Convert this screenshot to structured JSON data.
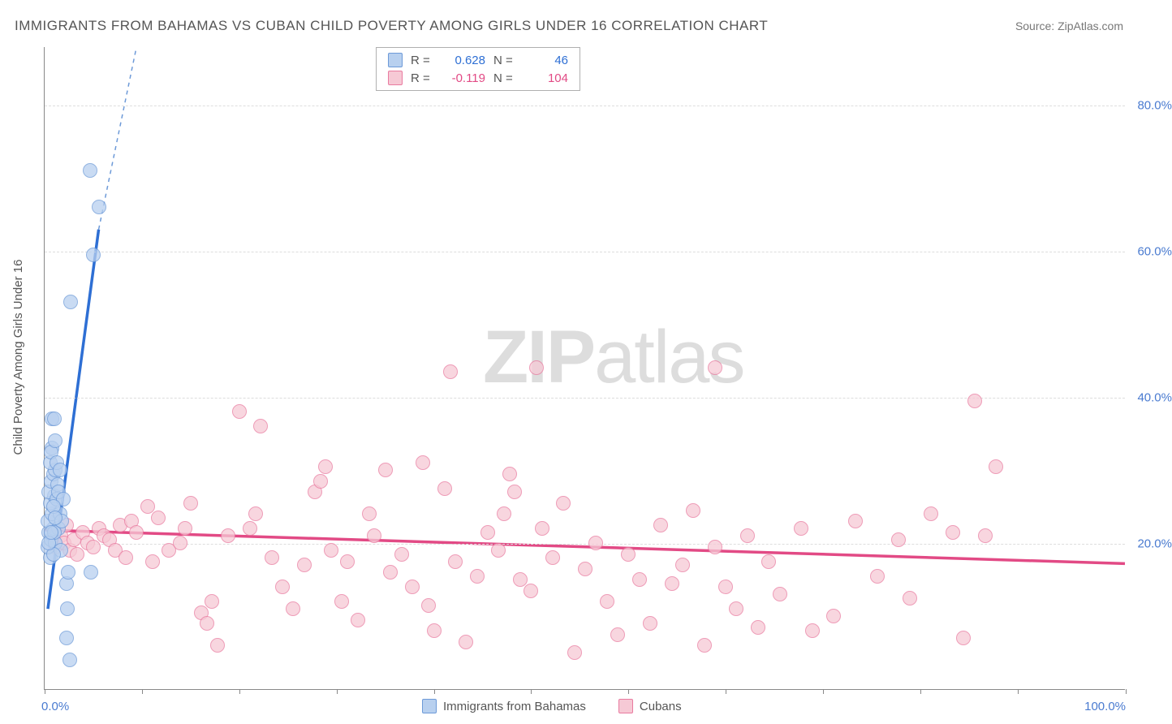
{
  "title": "IMMIGRANTS FROM BAHAMAS VS CUBAN CHILD POVERTY AMONG GIRLS UNDER 16 CORRELATION CHART",
  "source": "Source: ZipAtlas.com",
  "watermark_a": "ZIP",
  "watermark_b": "atlas",
  "y_axis_label": "Child Poverty Among Girls Under 16",
  "chart": {
    "type": "scatter",
    "xlim": [
      0,
      100
    ],
    "ylim": [
      0,
      88
    ],
    "x_tick_positions": [
      0,
      9,
      18,
      27,
      36,
      45,
      54,
      63,
      72,
      81,
      90,
      100
    ],
    "x_tick_labels": {
      "0": "0.0%",
      "100": "100.0%"
    },
    "y_ticks": [
      20,
      40,
      60,
      80
    ],
    "y_tick_labels": {
      "20": "20.0%",
      "40": "40.0%",
      "60": "60.0%",
      "80": "80.0%"
    },
    "xlabel_color": "#4a7bd0",
    "ylabel_color": "#4a7bd0",
    "grid_color": "#dddddd",
    "background_color": "#ffffff",
    "marker_radius": 9
  },
  "series": {
    "bahamas": {
      "label": "Immigrants from Bahamas",
      "fill": "#b8d0ef",
      "stroke": "#6d9ad8",
      "stat_color": "#2e6fd4",
      "R": "0.628",
      "N": "46",
      "trend": {
        "x1": 0.3,
        "y1": 11,
        "x2": 5.0,
        "y2": 63,
        "dash_ext_x": 8.5,
        "dash_ext_y": 88
      },
      "points": [
        [
          0.5,
          18
        ],
        [
          0.3,
          19.5
        ],
        [
          0.6,
          20.5
        ],
        [
          0.4,
          21.5
        ],
        [
          0.8,
          22
        ],
        [
          0.3,
          23
        ],
        [
          0.7,
          24
        ],
        [
          0.5,
          25.5
        ],
        [
          0.9,
          26.5
        ],
        [
          0.4,
          27
        ],
        [
          0.6,
          28.5
        ],
        [
          0.8,
          29.5
        ],
        [
          1.0,
          30
        ],
        [
          0.5,
          31
        ],
        [
          0.7,
          33
        ],
        [
          1.1,
          26
        ],
        [
          1.3,
          22
        ],
        [
          1.0,
          20
        ],
        [
          1.4,
          24
        ],
        [
          0.9,
          21.5
        ],
        [
          1.2,
          28
        ],
        [
          1.5,
          19
        ],
        [
          0.6,
          32.5
        ],
        [
          0.8,
          18.5
        ],
        [
          1.1,
          31
        ],
        [
          0.4,
          20
        ],
        [
          1.6,
          23
        ],
        [
          0.7,
          37
        ],
        [
          1.3,
          27
        ],
        [
          1.0,
          34
        ],
        [
          2.0,
          14.5
        ],
        [
          2.2,
          16
        ],
        [
          2.1,
          11
        ],
        [
          2.0,
          7
        ],
        [
          2.3,
          4
        ],
        [
          4.3,
          16
        ],
        [
          4.2,
          71
        ],
        [
          4.5,
          59.5
        ],
        [
          5.0,
          66
        ],
        [
          2.4,
          53
        ],
        [
          0.9,
          37
        ],
        [
          1.7,
          26
        ],
        [
          1.4,
          30
        ],
        [
          0.8,
          25
        ],
        [
          0.6,
          21.5
        ],
        [
          1.0,
          23.5
        ]
      ]
    },
    "cubans": {
      "label": "Cubans",
      "fill": "#f6c9d5",
      "stroke": "#e97ba0",
      "stat_color": "#e24a85",
      "R": "-0.119",
      "N": "104",
      "trend": {
        "x1": 0,
        "y1": 21.8,
        "x2": 100,
        "y2": 17.2
      },
      "points": [
        [
          1.0,
          19.5
        ],
        [
          1.5,
          21
        ],
        [
          1.8,
          20
        ],
        [
          2.0,
          22.5
        ],
        [
          2.3,
          19
        ],
        [
          2.7,
          20.5
        ],
        [
          3.0,
          18.5
        ],
        [
          3.5,
          21.5
        ],
        [
          4.0,
          20
        ],
        [
          4.5,
          19.5
        ],
        [
          5.0,
          22
        ],
        [
          5.5,
          21
        ],
        [
          6.0,
          20.5
        ],
        [
          6.5,
          19
        ],
        [
          7.0,
          22.5
        ],
        [
          7.5,
          18
        ],
        [
          8.0,
          23
        ],
        [
          8.5,
          21.5
        ],
        [
          9.5,
          25
        ],
        [
          10.0,
          17.5
        ],
        [
          10.5,
          23.5
        ],
        [
          11.5,
          19
        ],
        [
          12.5,
          20
        ],
        [
          13.0,
          22
        ],
        [
          13.5,
          25.5
        ],
        [
          14.5,
          10.5
        ],
        [
          15.0,
          9
        ],
        [
          15.5,
          12
        ],
        [
          16.0,
          6
        ],
        [
          17.0,
          21
        ],
        [
          18.0,
          38
        ],
        [
          19.0,
          22
        ],
        [
          19.5,
          24
        ],
        [
          20.0,
          36
        ],
        [
          21.0,
          18
        ],
        [
          22.0,
          14
        ],
        [
          23.0,
          11
        ],
        [
          24.0,
          17
        ],
        [
          25.0,
          27
        ],
        [
          25.5,
          28.5
        ],
        [
          26.0,
          30.5
        ],
        [
          26.5,
          19
        ],
        [
          27.5,
          12
        ],
        [
          28.0,
          17.5
        ],
        [
          29.0,
          9.5
        ],
        [
          30.0,
          24
        ],
        [
          30.5,
          21
        ],
        [
          31.5,
          30
        ],
        [
          32.0,
          16
        ],
        [
          33.0,
          18.5
        ],
        [
          34.0,
          14
        ],
        [
          35.0,
          31
        ],
        [
          35.5,
          11.5
        ],
        [
          36.0,
          8
        ],
        [
          37.0,
          27.5
        ],
        [
          37.5,
          43.5
        ],
        [
          38.0,
          17.5
        ],
        [
          39.0,
          6.5
        ],
        [
          40.0,
          15.5
        ],
        [
          41.0,
          21.5
        ],
        [
          42.0,
          19
        ],
        [
          42.5,
          24
        ],
        [
          43.0,
          29.5
        ],
        [
          43.5,
          27
        ],
        [
          44.0,
          15
        ],
        [
          45.0,
          13.5
        ],
        [
          45.5,
          44
        ],
        [
          46.0,
          22
        ],
        [
          47.0,
          18
        ],
        [
          48.0,
          25.5
        ],
        [
          49.0,
          5
        ],
        [
          50.0,
          16.5
        ],
        [
          51.0,
          20
        ],
        [
          52.0,
          12
        ],
        [
          53.0,
          7.5
        ],
        [
          54.0,
          18.5
        ],
        [
          55.0,
          15
        ],
        [
          56.0,
          9
        ],
        [
          57.0,
          22.5
        ],
        [
          58.0,
          14.5
        ],
        [
          59.0,
          17
        ],
        [
          60.0,
          24.5
        ],
        [
          61.0,
          6
        ],
        [
          62.0,
          19.5
        ],
        [
          63.0,
          14
        ],
        [
          64.0,
          11
        ],
        [
          65.0,
          21
        ],
        [
          66.0,
          8.5
        ],
        [
          67.0,
          17.5
        ],
        [
          68.0,
          13
        ],
        [
          70.0,
          22
        ],
        [
          71.0,
          8
        ],
        [
          73.0,
          10
        ],
        [
          75.0,
          23
        ],
        [
          77.0,
          15.5
        ],
        [
          79.0,
          20.5
        ],
        [
          80.0,
          12.5
        ],
        [
          82.0,
          24
        ],
        [
          84.0,
          21.5
        ],
        [
          85.0,
          7
        ],
        [
          87.0,
          21
        ],
        [
          88.0,
          30.5
        ],
        [
          86.0,
          39.5
        ],
        [
          62.0,
          44
        ]
      ]
    }
  },
  "stats_labels": {
    "r": "R =",
    "n": "N ="
  },
  "bottom_legend": [
    "Immigrants from Bahamas",
    "Cubans"
  ]
}
